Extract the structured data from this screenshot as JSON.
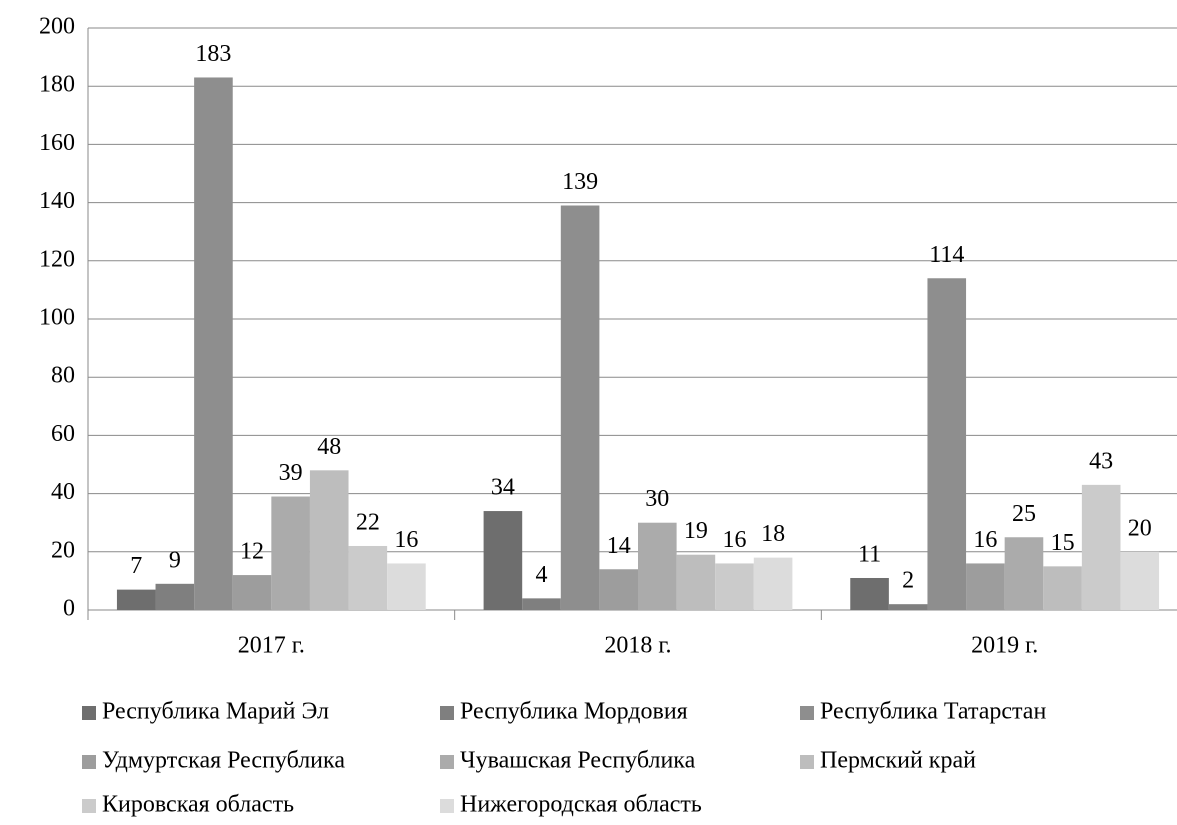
{
  "chart_data": {
    "type": "bar",
    "categories": [
      "2017 г.",
      "2018 г.",
      "2019 г."
    ],
    "series": [
      {
        "name": "Республика Марий Эл",
        "color": "#6e6e6e",
        "values": [
          7,
          34,
          11
        ]
      },
      {
        "name": "Республика Мордовия",
        "color": "#7f7f7f",
        "values": [
          9,
          4,
          2
        ]
      },
      {
        "name": "Республика Татарстан",
        "color": "#8e8e8e",
        "values": [
          183,
          139,
          114
        ]
      },
      {
        "name": "Удмуртская Республика",
        "color": "#9d9d9d",
        "values": [
          12,
          14,
          16
        ]
      },
      {
        "name": "Чувашская Республика",
        "color": "#ababab",
        "values": [
          39,
          30,
          25
        ]
      },
      {
        "name": "Пермский край",
        "color": "#bdbdbd",
        "values": [
          48,
          19,
          15
        ]
      },
      {
        "name": "Кировская область",
        "color": "#cbcbcb",
        "values": [
          22,
          16,
          43
        ]
      },
      {
        "name": "Нижегородская область",
        "color": "#dcdcdc",
        "values": [
          16,
          18,
          20
        ]
      }
    ],
    "ylim": [
      0,
      200
    ],
    "yticks": [
      0,
      20,
      40,
      60,
      80,
      100,
      120,
      140,
      160,
      180,
      200
    ],
    "grid": true,
    "legend": "bottom"
  }
}
